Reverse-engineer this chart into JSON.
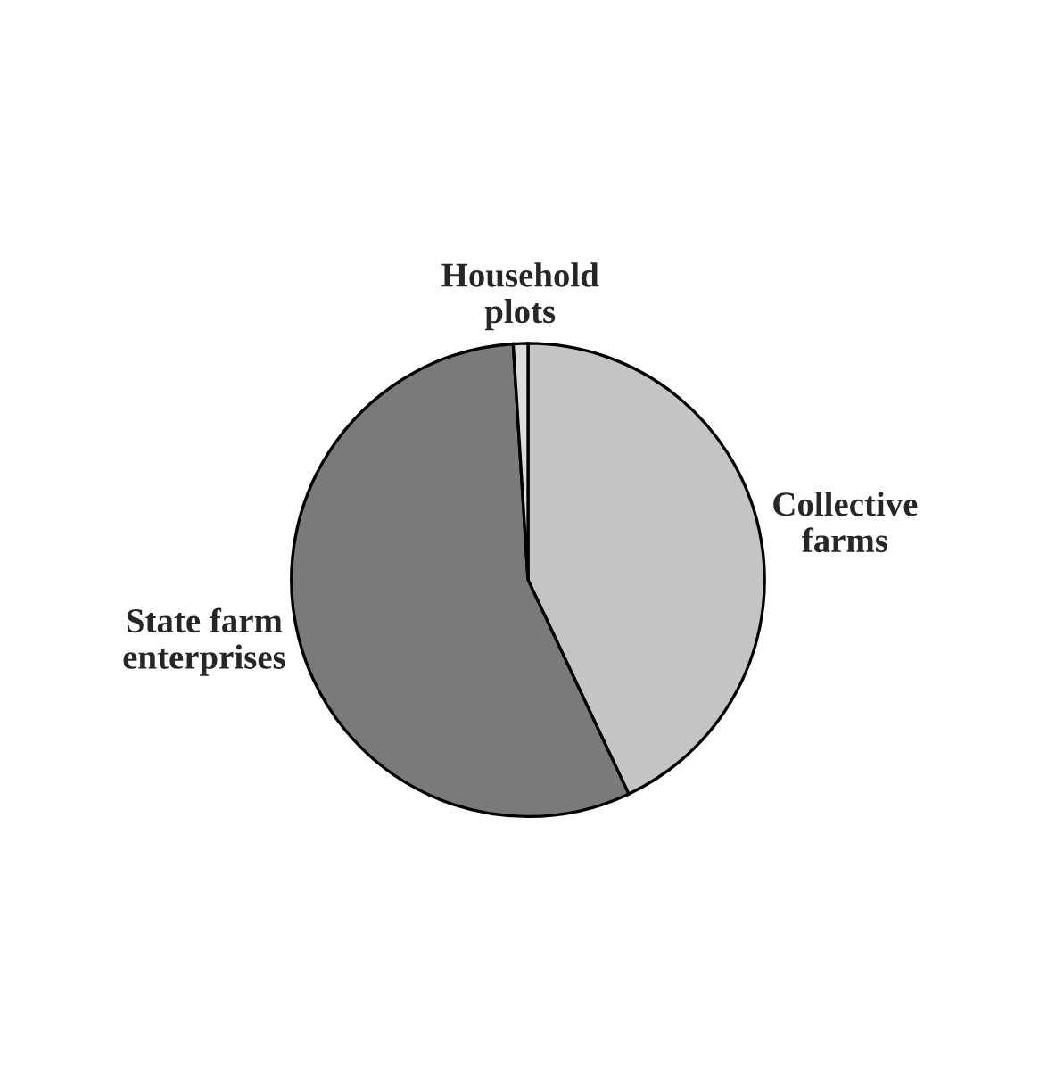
{
  "chart_data": {
    "type": "pie",
    "categories": [
      "Collective farms",
      "State farm enterprises",
      "Household plots"
    ],
    "values": [
      43,
      56,
      1
    ],
    "colors": [
      "#c4c4c4",
      "#7a7a7a",
      "#dcdcdc"
    ]
  }
}
